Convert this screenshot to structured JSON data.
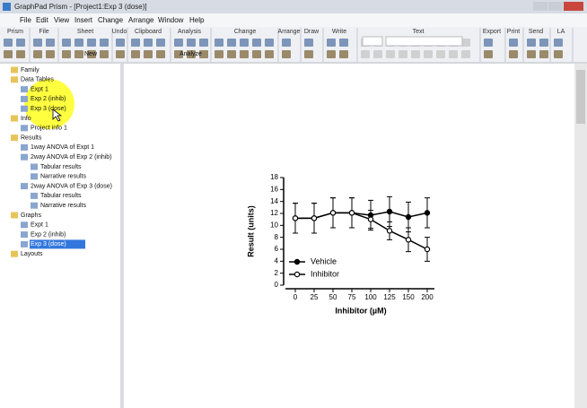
{
  "window_title": "GraphPad Prism - [Project1:Exp 3 (dose)]",
  "menu": [
    "File",
    "Edit",
    "View",
    "Insert",
    "Change",
    "Arrange",
    "Window",
    "Help"
  ],
  "toolbar_groups": [
    "Prism",
    "File",
    "Sheet",
    "Undo",
    "Clipboard",
    "Analysis",
    "Change",
    "Arrange",
    "Draw",
    "Write",
    "Text",
    "Export",
    "Print",
    "Send",
    "LA"
  ],
  "toolbar_texts": {
    "new": "New",
    "analyze": "Analyze"
  },
  "navigator": [
    {
      "label": "Family"
    },
    {
      "label": "Data Tables",
      "items": [
        {
          "label": "Expt 1"
        },
        {
          "label": "Exp 2 (inhib)"
        },
        {
          "label": "Exp 3 (dose)"
        }
      ]
    },
    {
      "label": "Info",
      "items": [
        {
          "label": "Project info 1"
        }
      ]
    },
    {
      "label": "Results",
      "items": [
        {
          "label": "1way ANOVA of Expt 1"
        },
        {
          "label": "2way ANOVA of Exp 2 (inhib)",
          "items": [
            {
              "label": "Tabular results"
            },
            {
              "label": "Narrative results"
            }
          ]
        },
        {
          "label": "2way ANOVA of Exp 3 (dose)",
          "items": [
            {
              "label": "Tabular results"
            },
            {
              "label": "Narrative results"
            }
          ]
        }
      ]
    },
    {
      "label": "Graphs",
      "items": [
        {
          "label": "Expt 1"
        },
        {
          "label": "Exp 2 (inhib)"
        },
        {
          "label": "Exp 3 (dose)",
          "selected": true
        }
      ]
    },
    {
      "label": "Layouts"
    }
  ],
  "chart_data": {
    "type": "line",
    "xlabel": "Inhibitor (µM)",
    "ylabel": "Result (units)",
    "categories": [
      "0",
      "25",
      "50",
      "75",
      "100",
      "125",
      "150",
      "200"
    ],
    "series": [
      {
        "name": "Vehicle",
        "color": "#000000",
        "marker": "filled",
        "values": [
          11.2,
          11.2,
          12.1,
          12.1,
          11.7,
          12.3,
          11.4,
          12.1
        ],
        "errors": [
          2.5,
          2.5,
          2.5,
          2.5,
          2.5,
          2.5,
          2.5,
          2.5
        ]
      },
      {
        "name": "Inhibitor",
        "color": "#000000",
        "marker": "open",
        "values": [
          11.2,
          11.2,
          12.1,
          12.1,
          11,
          9.1,
          7.6,
          6
        ],
        "errors": [
          2.5,
          2.5,
          2.5,
          2.5,
          1.5,
          1.5,
          2,
          2
        ]
      }
    ],
    "ylim": [
      0,
      18
    ],
    "yticks": [
      0,
      2,
      4,
      6,
      8,
      10,
      12,
      14,
      16,
      18
    ],
    "legend": "lower left"
  }
}
